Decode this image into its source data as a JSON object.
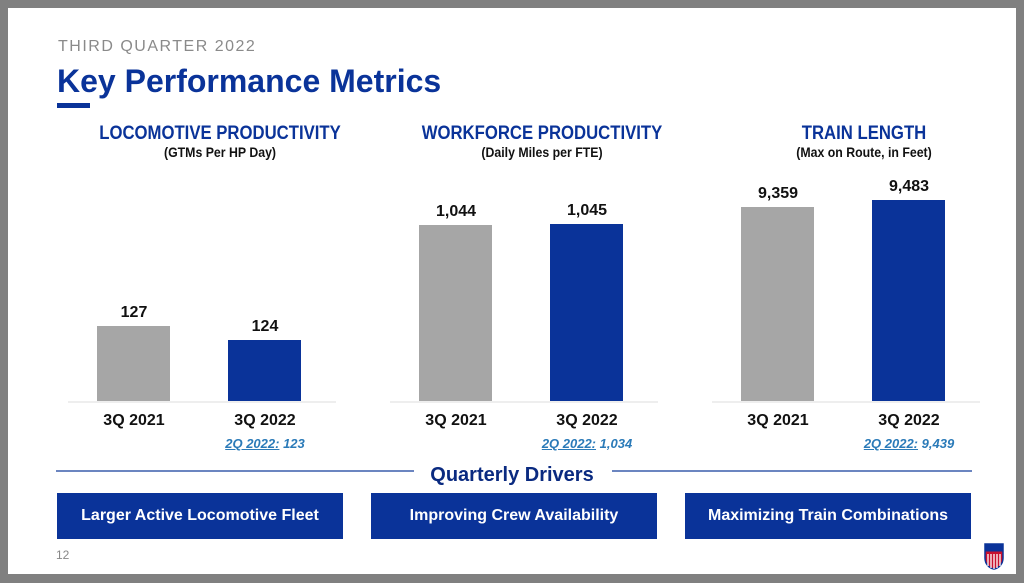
{
  "header": {
    "subtitle": "THIRD QUARTER 2022",
    "title": "Key Performance Metrics"
  },
  "colors": {
    "prior": "#a6a6a6",
    "current": "#0a3399"
  },
  "chart_data": [
    {
      "type": "bar",
      "title": "LOCOMOTIVE PRODUCTIVITY",
      "subtitle": "(GTMs Per HP Day)",
      "categories": [
        "3Q 2021",
        "3Q 2022"
      ],
      "values": [
        127,
        124
      ],
      "labels": [
        "127",
        "124"
      ],
      "ylim": [
        111,
        156
      ],
      "comparison": {
        "label": "2Q 2022:",
        "value": "123"
      }
    },
    {
      "type": "bar",
      "title": "WORKFORCE PRODUCTIVITY",
      "subtitle": "(Daily Miles per FTE)",
      "categories": [
        "3Q 2021",
        "3Q 2022"
      ],
      "values": [
        1044,
        1045
      ],
      "labels": [
        "1,044",
        "1,045"
      ],
      "ylim": [
        868,
        1078
      ],
      "comparison": {
        "label": "2Q 2022:",
        "value": "1,034"
      }
    },
    {
      "type": "bar",
      "title": "TRAIN LENGTH",
      "subtitle": "(Max on Route, in Feet)",
      "categories": [
        "3Q 2021",
        "3Q 2022"
      ],
      "values": [
        9359,
        9483
      ],
      "labels": [
        "9,359",
        "9,483"
      ],
      "ylim": [
        5926,
        9643
      ],
      "comparison": {
        "label": "2Q 2022:",
        "value": "9,439"
      }
    }
  ],
  "drivers": {
    "heading": "Quarterly Drivers",
    "items": [
      "Larger Active Locomotive Fleet",
      "Improving Crew Availability",
      "Maximizing Train Combinations"
    ]
  },
  "footer": {
    "page": "12",
    "logo": "UNION PACIFIC"
  }
}
